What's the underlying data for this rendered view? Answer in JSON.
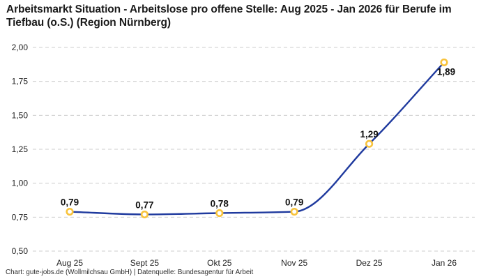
{
  "title": "Arbeitsmarkt Situation - Arbeitslose pro offene Stelle: Aug 2025 - Jan 2026 für Berufe im Tiefbau (o.S.) (Region Nürnberg)",
  "footer": "Chart: gute-jobs.de (Wollmilchsau GmbH) | Datenquelle: Bundesagentur für Arbeit",
  "colors": {
    "background": "#ffffff",
    "title_text": "#1a1a1a",
    "axis_text": "#222222",
    "value_label_text": "#111111",
    "footer_text": "#2e2e2e",
    "gridline": "#cccccc",
    "line": "#1f3a9e",
    "marker_stroke": "#f8c33c",
    "marker_fill": "#ffffff"
  },
  "chart_data": {
    "type": "line",
    "title": "Arbeitsmarkt Situation - Arbeitslose pro offene Stelle: Aug 2025 - Jan 2026 für Berufe im Tiefbau (o.S.) (Region Nürnberg)",
    "categories": [
      "Aug 25",
      "Sept 25",
      "Okt 25",
      "Nov 25",
      "Dez 25",
      "Jan 26"
    ],
    "values": [
      0.79,
      0.77,
      0.78,
      0.79,
      1.29,
      1.89
    ],
    "value_labels": [
      "0,79",
      "0,77",
      "0,78",
      "0,79",
      "1,29",
      "1,89"
    ],
    "xlabel": "",
    "ylabel": "",
    "ylim": [
      0.5,
      2.0
    ],
    "y_tick_values": [
      2.0,
      1.75,
      1.5,
      1.25,
      1.0,
      0.75,
      0.5
    ],
    "y_tick_labels": [
      "2,00",
      "1,75",
      "1,50",
      "1,25",
      "1,00",
      "0,75",
      "0,50"
    ],
    "grid": "horizontal-dashed",
    "legend": "none",
    "curve": "smooth-monotone"
  }
}
